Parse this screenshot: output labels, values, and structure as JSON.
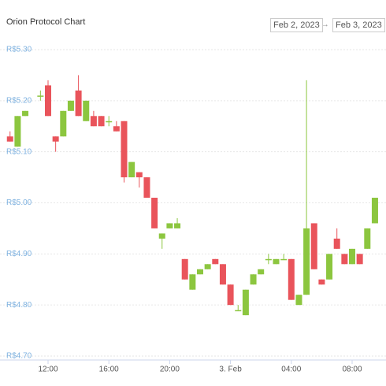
{
  "chart_data": {
    "type": "candlestick",
    "title": "Orion Protocol Chart",
    "date_from": "Feb 2, 2023",
    "date_to": "Feb 3, 2023",
    "x": [
      9.5,
      10,
      10.5,
      11.5,
      12,
      12.5,
      13,
      13.5,
      14,
      14.5,
      15,
      15.5,
      16,
      16.5,
      17,
      17.5,
      18,
      18.5,
      19,
      19.5,
      20,
      20.5,
      21,
      21.5,
      22,
      22.5,
      23,
      23.5,
      24,
      24.5,
      25,
      25.5,
      26,
      26.5,
      27,
      27.5,
      28,
      28.5,
      29,
      29.5,
      30,
      30.5,
      31,
      31.5,
      32,
      32.5,
      33,
      33.5
    ],
    "open": [
      5.13,
      5.11,
      5.17,
      5.21,
      5.23,
      5.13,
      5.13,
      5.18,
      5.22,
      5.16,
      5.17,
      5.17,
      5.16,
      5.15,
      5.16,
      5.05,
      5.06,
      5.05,
      5.01,
      4.93,
      4.95,
      4.95,
      4.89,
      4.83,
      4.86,
      4.87,
      4.89,
      4.88,
      4.84,
      4.79,
      4.78,
      4.84,
      4.86,
      4.89,
      4.88,
      4.89,
      4.89,
      4.8,
      4.82,
      4.96,
      4.85,
      4.85,
      4.93,
      4.9,
      4.88,
      4.9,
      4.91,
      4.96
    ],
    "high": [
      5.14,
      5.17,
      5.18,
      5.22,
      5.24,
      5.13,
      5.18,
      5.2,
      5.25,
      5.2,
      5.18,
      5.17,
      5.17,
      5.16,
      5.16,
      5.08,
      5.06,
      5.05,
      5.01,
      4.94,
      4.96,
      4.97,
      4.89,
      4.86,
      4.87,
      4.88,
      4.89,
      4.88,
      4.84,
      4.8,
      4.83,
      4.86,
      4.87,
      4.9,
      4.89,
      4.9,
      4.89,
      4.82,
      5.24,
      4.96,
      4.85,
      4.9,
      4.95,
      4.9,
      4.91,
      4.9,
      4.95,
      5.01
    ],
    "low": [
      5.12,
      5.11,
      5.17,
      5.2,
      5.17,
      5.1,
      5.13,
      5.18,
      5.17,
      5.16,
      5.15,
      5.15,
      5.15,
      5.14,
      5.04,
      5.05,
      5.03,
      5.01,
      4.95,
      4.91,
      4.95,
      4.95,
      4.85,
      4.83,
      4.86,
      4.87,
      4.88,
      4.84,
      4.8,
      4.79,
      4.78,
      4.84,
      4.86,
      4.88,
      4.88,
      4.89,
      4.81,
      4.8,
      4.82,
      4.87,
      4.84,
      4.85,
      4.91,
      4.88,
      4.88,
      4.88,
      4.91,
      4.96
    ],
    "close": [
      5.12,
      5.17,
      5.18,
      5.21,
      5.17,
      5.12,
      5.18,
      5.2,
      5.17,
      5.2,
      5.15,
      5.15,
      5.16,
      5.14,
      5.05,
      5.08,
      5.05,
      5.01,
      4.95,
      4.94,
      4.96,
      4.96,
      4.85,
      4.86,
      4.87,
      4.88,
      4.88,
      4.84,
      4.8,
      4.79,
      4.83,
      4.86,
      4.87,
      4.89,
      4.89,
      4.89,
      4.81,
      4.82,
      4.95,
      4.87,
      4.84,
      4.9,
      4.91,
      4.88,
      4.91,
      4.88,
      4.95,
      5.01
    ],
    "up_color": "#8cc63f",
    "down_color": "#e9545b",
    "xlim": [
      9,
      34
    ],
    "xticks": [
      {
        "value": 12,
        "label": "12:00"
      },
      {
        "value": 16,
        "label": "16:00"
      },
      {
        "value": 20,
        "label": "20:00"
      },
      {
        "value": 24,
        "label": "3. Feb"
      },
      {
        "value": 28,
        "label": "04:00"
      },
      {
        "value": 32,
        "label": "08:00"
      }
    ],
    "ylim": [
      4.7,
      5.3
    ],
    "yticks": [
      {
        "value": 4.7,
        "label": "R$4.70"
      },
      {
        "value": 4.8,
        "label": "R$4.80"
      },
      {
        "value": 4.9,
        "label": "R$4.90"
      },
      {
        "value": 5.0,
        "label": "R$5.00"
      },
      {
        "value": 5.1,
        "label": "R$5.10"
      },
      {
        "value": 5.2,
        "label": "R$5.20"
      },
      {
        "value": 5.3,
        "label": "R$5.30"
      }
    ],
    "grid": true
  }
}
